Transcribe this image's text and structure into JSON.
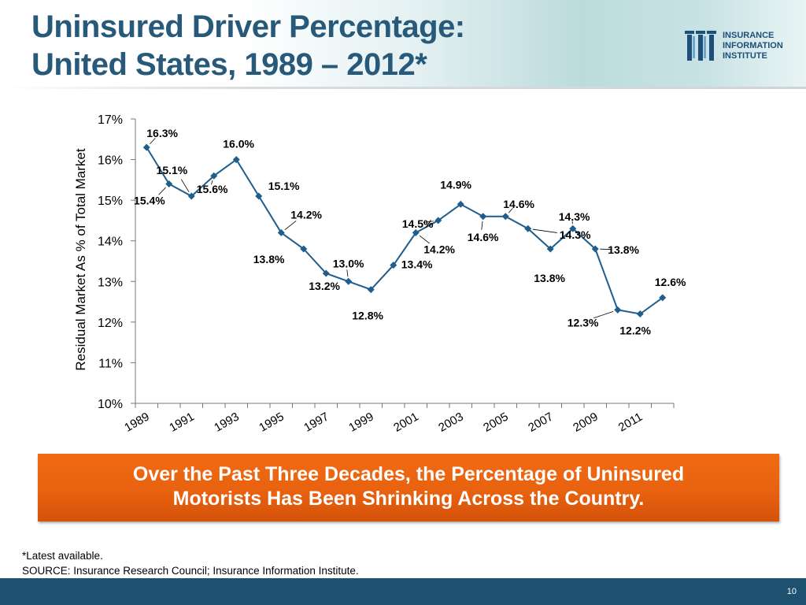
{
  "title": {
    "line1": "Uninsured Driver Percentage:",
    "line2": "United States, 1989 – 2012*"
  },
  "logo": {
    "lines": [
      "INSURANCE",
      "INFORMATION",
      "INSTITUTE"
    ],
    "accent_color": "#1d4f7a"
  },
  "chart_data": {
    "type": "line",
    "title": "",
    "xlabel": "",
    "ylabel": "Residual Market As % of Total Market",
    "ylim": [
      10,
      17
    ],
    "y_ticks": [
      "10%",
      "11%",
      "12%",
      "13%",
      "14%",
      "15%",
      "16%",
      "17%"
    ],
    "x_tick_labels": [
      "1989",
      "1991",
      "1993",
      "1995",
      "1997",
      "1999",
      "2001",
      "2003",
      "2005",
      "2007",
      "2009",
      "2011"
    ],
    "series": [
      {
        "name": "Uninsured Driver Percentage",
        "color": "#1f5d8c",
        "x": [
          1989,
          1990,
          1991,
          1992,
          1993,
          1994,
          1995,
          1996,
          1997,
          1998,
          1999,
          2000,
          2001,
          2002,
          2003,
          2004,
          2005,
          2006,
          2007,
          2008,
          2009,
          2010,
          2011,
          2012
        ],
        "values": [
          16.3,
          15.4,
          15.1,
          15.6,
          16.0,
          15.1,
          14.2,
          13.8,
          13.2,
          13.0,
          12.8,
          13.4,
          14.2,
          14.5,
          14.9,
          14.6,
          14.6,
          14.3,
          13.8,
          14.3,
          13.8,
          12.3,
          12.2,
          12.6
        ],
        "data_labels": [
          "16.3%",
          "15.4%",
          "15.1%",
          "15.6%",
          "16.0%",
          "15.1%",
          "14.2%",
          "13.8%",
          "13.2%",
          "13.0%",
          "12.8%",
          "13.4%",
          "14.2%",
          "14.5%",
          "14.9%",
          "14.6%",
          "14.6%",
          "14.3%",
          "13.8%",
          "14.3%",
          "13.8%",
          "12.3%",
          "12.2%",
          "12.6%"
        ]
      }
    ],
    "grid": false,
    "legend": "none"
  },
  "callout": {
    "line1": "Over the Past Three Decades, the Percentage of Uninsured",
    "line2": "Motorists Has Been Shrinking Across the Country.",
    "color": "#ec6410"
  },
  "footnote": {
    "note": "*Latest available.",
    "source": "SOURCE: Insurance Research Council; Insurance Information Institute."
  },
  "footer": {
    "page_number": "10",
    "color": "#1e5070"
  }
}
